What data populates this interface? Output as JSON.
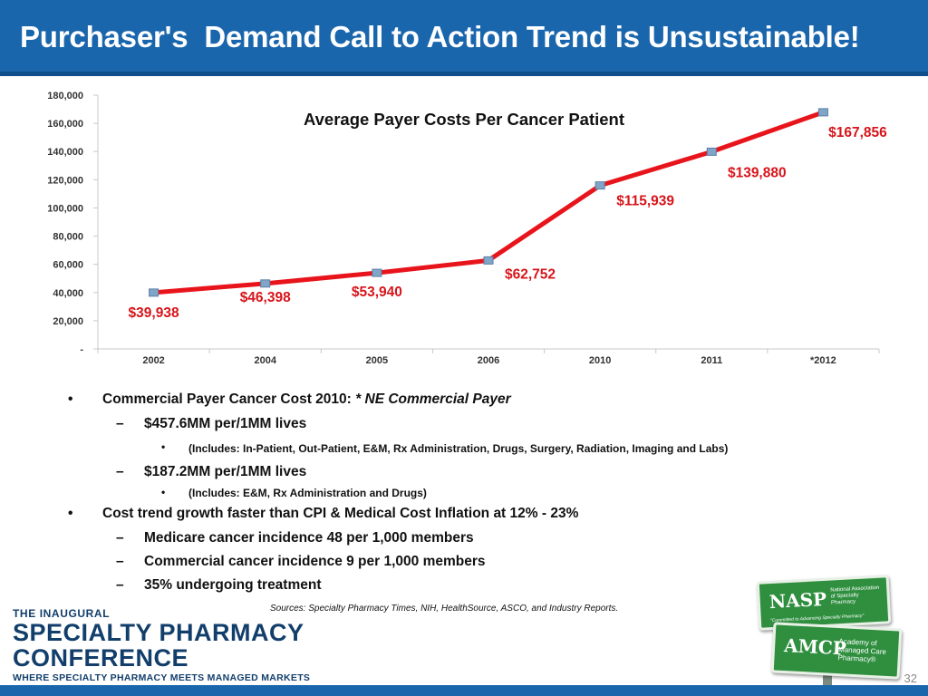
{
  "slide": {
    "title": "Purchaser's  Demand Call to Action Trend is Unsustainable!",
    "page_number": "32",
    "sources": "Sources:  Specialty Pharmacy Times, NIH, HealthSource, ASCO, and Industry Reports."
  },
  "chart_data": {
    "type": "line",
    "title": "Average Payer Costs Per Cancer Patient",
    "categories": [
      "2002",
      "2004",
      "2005",
      "2006",
      "2010",
      "2011",
      "*2012"
    ],
    "series": [
      {
        "name": "Average Payer Costs Per Cancer Patient",
        "values": [
          39938,
          46398,
          53940,
          62752,
          115939,
          139880,
          167856
        ]
      }
    ],
    "data_labels": [
      "$39,938",
      "$46,398",
      "$53,940",
      "$62,752",
      "$115,939",
      "$139,880",
      "$167,856"
    ],
    "y_ticks": [
      0,
      20000,
      40000,
      60000,
      80000,
      100000,
      120000,
      140000,
      160000,
      180000
    ],
    "y_tick_labels": [
      "-",
      "20,000",
      "40,000",
      "60,000",
      "80,000",
      "100,000",
      "120,000",
      "140,000",
      "160,000",
      "180,000"
    ],
    "ylim": [
      0,
      180000
    ],
    "line_color": "#e8141b",
    "marker_color": "#7fa6c9",
    "label_color": "#d7141a",
    "xlabel": "",
    "ylabel": ""
  },
  "bullets": [
    {
      "level": 1,
      "marker": "•",
      "text": "Commercial Payer Cancer Cost 2010:",
      "emphasis": "* NE Commercial Payer"
    },
    {
      "level": 2,
      "marker": "–",
      "text": "$457.6MM per/1MM lives"
    },
    {
      "level": 3,
      "marker": "•",
      "text": "(Includes: In-Patient, Out-Patient, E&M, Rx Administration, Drugs, Surgery, Radiation, Imaging and Labs)"
    },
    {
      "level": 2,
      "marker": "–",
      "text": "$187.2MM per/1MM lives"
    },
    {
      "level": 3,
      "marker": "•",
      "text": "(Includes: E&M, Rx Administration and Drugs)"
    },
    {
      "level": 1,
      "marker": "•",
      "text": "Cost trend growth faster than CPI & Medical Cost Inflation at 12% - 23%"
    },
    {
      "level": 2,
      "marker": "–",
      "text": "Medicare cancer incidence 48 per 1,000 members"
    },
    {
      "level": 2,
      "marker": "–",
      "text": "Commercial cancer incidence 9 per 1,000 members"
    },
    {
      "level": 2,
      "marker": "–",
      "text": "35% undergoing treatment"
    }
  ],
  "logo": {
    "line1": "THE INAUGURAL",
    "line2": "SPECIALTY PHARMACY",
    "line3": "CONFERENCE",
    "tagline": "WHERE SPECIALTY PHARMACY MEETS MANAGED MARKETS"
  },
  "signs": {
    "nasp": {
      "abbr": "NASP",
      "name": "National Association of Specialty Pharmacy",
      "motto": "\"Committed to Advancing Specialty Pharmacy\""
    },
    "amcp": {
      "abbr": "AMCP",
      "name": "Academy of Managed Care Pharmacy®"
    }
  },
  "colors": {
    "title_bar": "#1a66ad",
    "footer_bar": "#1a66ad",
    "logo_text": "#123e6b",
    "sign_green": "#2f8f3f"
  }
}
